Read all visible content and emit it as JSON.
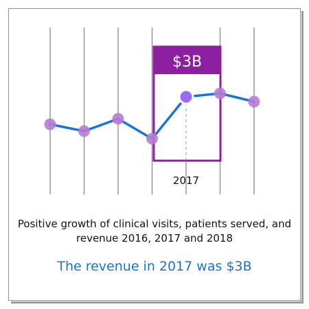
{
  "chart_data": {
    "type": "line",
    "x": [
      1,
      2,
      3,
      4,
      5,
      6,
      7
    ],
    "values": [
      181,
      191,
      173,
      202,
      141,
      136,
      148
    ],
    "y_inverted_visual": true,
    "highlight_index": 4,
    "highlight_label": "$3B",
    "highlight_tick": "2017",
    "caption": "Positive growth of clinical visits, patients served, and revenue 2016, 2017 and 2018",
    "headline": "The revenue in 2017 was $3B"
  },
  "colors": {
    "line": "#1a73d6",
    "marker": "#b77cd0",
    "highlight_marker": "#9b6cf2",
    "box": "#8b1fa0",
    "gridline": "#7f7f7f",
    "headline_text": "#1a73c8"
  }
}
